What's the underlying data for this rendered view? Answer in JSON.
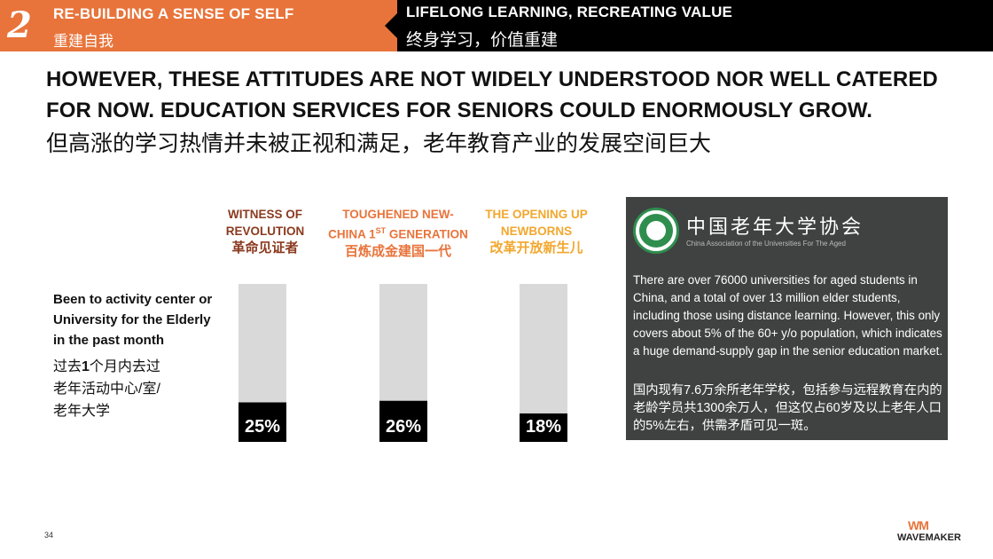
{
  "header": {
    "section_number": "2",
    "left_title_en": "RE-BUILDING A SENSE OF SELF",
    "left_title_zh": "重建自我",
    "right_title_en": "LIFELONG LEARNING, RECREATING VALUE",
    "right_title_zh": "终身学习，价值重建"
  },
  "headline": {
    "en": "HOWEVER, THESE ATTITUDES ARE NOT WIDELY UNDERSTOOD NOR WELL CATERED FOR NOW. EDUCATION SERVICES FOR SENIORS COULD ENORMOUSLY GROW.",
    "zh": "但高涨的学习热情并未被正视和满足，老年教育产业的发展空间巨大"
  },
  "row_label": {
    "en": "Been to activity center or University for the Elderly in the past month",
    "zh_line1_pre": "过去",
    "zh_line1_num": "1",
    "zh_line1_post": "个月内去过",
    "zh_line2": "老年活动中心/室/",
    "zh_line3": "老年大学"
  },
  "generations": [
    {
      "en_line1": "WITNESS OF",
      "en_line2": "REVOLUTION",
      "zh": "革命见证者",
      "color": "#8B3A1F"
    },
    {
      "en_line1": "TOUGHENED NEW-",
      "en_line2_pre": "CHINA 1",
      "en_line2_sup": "ST",
      "en_line2_post": " GENERATION",
      "zh": "百炼成金建国一代",
      "color": "#E8743B"
    },
    {
      "en_line1": "THE OPENING UP",
      "en_line2": "NEWBORNS",
      "zh": "改革开放新生儿",
      "color": "#F2A72E"
    }
  ],
  "chart_data": {
    "type": "bar",
    "categories": [
      "WITNESS OF REVOLUTION",
      "TOUGHENED NEW-CHINA 1ST GENERATION",
      "THE OPENING UP NEWBORNS"
    ],
    "values": [
      25,
      26,
      18
    ],
    "value_labels": [
      "25%",
      "26%",
      "18%"
    ],
    "ylim": [
      0,
      100
    ],
    "bar_color": "#000000",
    "track_color": "#D9D9D9"
  },
  "info_box": {
    "org_zh": "中国老年大学协会",
    "org_en": "China Association of the Universities For The Aged",
    "text_en": "There are over 76000 universities for aged students in China, and a total of over 13 million elder students, including those using distance learning. However, this only covers about 5% of the 60+ y/o population, which indicates a huge demand-supply gap in the senior education market.",
    "text_zh": "国内现有7.6万余所老年学校，包括参与远程教育在内的老龄学员共1300余万人，但这仅占60岁及以上老年人口的5%左右，供需矛盾可见一斑。",
    "logo_green": "#2F8E4E"
  },
  "footer": {
    "page_number": "34",
    "brand": "WAVEMAKER",
    "brand_mark": "WM"
  }
}
